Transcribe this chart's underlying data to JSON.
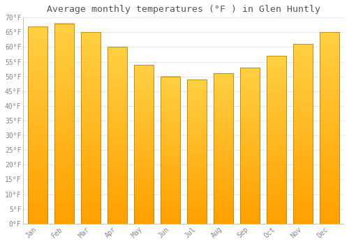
{
  "months": [
    "Jan",
    "Feb",
    "Mar",
    "Apr",
    "May",
    "Jun",
    "Jul",
    "Aug",
    "Sep",
    "Oct",
    "Nov",
    "Dec"
  ],
  "values": [
    67,
    68,
    65,
    60,
    54,
    50,
    49,
    51,
    53,
    57,
    61,
    65
  ],
  "bar_color_top": "#FFD700",
  "bar_color_bottom": "#FFA000",
  "bar_edge_color": "#B8860B",
  "title": "Average monthly temperatures (°F ) in Glen Huntly",
  "ylim": [
    0,
    70
  ],
  "yticks": [
    0,
    5,
    10,
    15,
    20,
    25,
    30,
    35,
    40,
    45,
    50,
    55,
    60,
    65,
    70
  ],
  "ytick_labels": [
    "0°F",
    "5°F",
    "10°F",
    "15°F",
    "20°F",
    "25°F",
    "30°F",
    "35°F",
    "40°F",
    "45°F",
    "50°F",
    "55°F",
    "60°F",
    "65°F",
    "70°F"
  ],
  "title_fontsize": 9.5,
  "tick_fontsize": 7,
  "background_color": "#FFFFFF",
  "plot_bg_color": "#FFFFFF",
  "grid_color": "#DDDDDD",
  "bar_width": 0.75,
  "title_color": "#555555",
  "tick_color": "#888888"
}
